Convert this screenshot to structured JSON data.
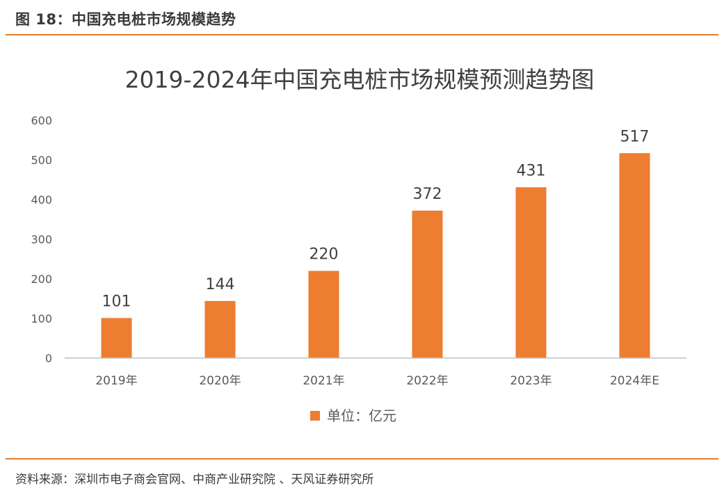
{
  "header": {
    "figure_title": "图 18：中国充电桩市场规模趋势"
  },
  "footer": {
    "source": "资料来源：深圳市电子商会官网、中商产业研究院 、天风证券研究所"
  },
  "colors": {
    "accent": "#E07B2A",
    "bar": "#ED7D31",
    "axis": "#BFBFBF"
  },
  "chart_data": {
    "type": "bar",
    "title": "2019-2024年中国充电桩市场规模预测趋势图",
    "categories": [
      "2019年",
      "2020年",
      "2021年",
      "2022年",
      "2023年",
      "2024年E"
    ],
    "series": [
      {
        "name": "单位：亿元",
        "values": [
          101,
          144,
          220,
          372,
          431,
          517
        ]
      }
    ],
    "data_labels": [
      "101",
      "144",
      "220",
      "372",
      "431",
      "517"
    ],
    "yticks": [
      "0",
      "100",
      "200",
      "300",
      "400",
      "500",
      "600"
    ],
    "ylim": [
      0,
      600
    ],
    "xlabel": "",
    "ylabel": "",
    "legend": "bottom",
    "grid": false
  }
}
